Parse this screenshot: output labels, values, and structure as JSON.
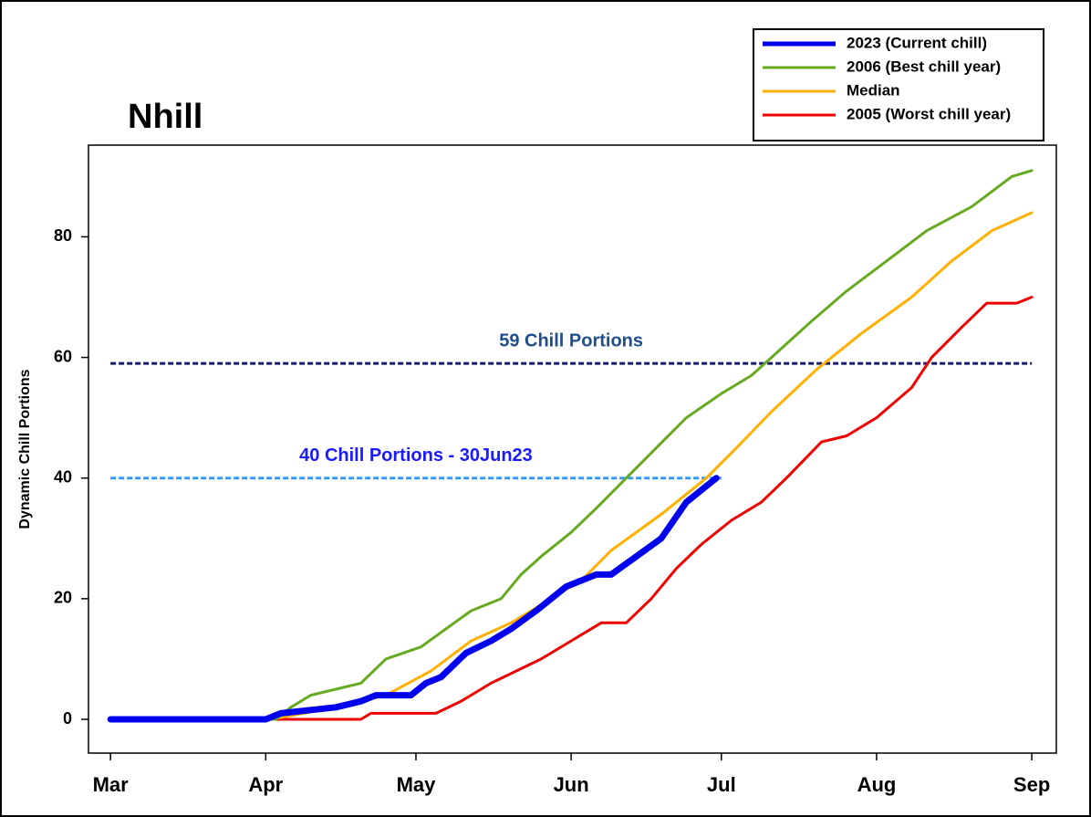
{
  "chart_data": {
    "type": "line",
    "title": "Nhill",
    "y_label": "Dynamic Chill Portions",
    "xlim": [
      -4.4,
      188.9
    ],
    "ylim": [
      -5.6,
      95.2
    ],
    "xticks": [
      {
        "value": 0,
        "label": "Mar"
      },
      {
        "value": 31,
        "label": "Apr"
      },
      {
        "value": 61,
        "label": "May"
      },
      {
        "value": 92,
        "label": "Jun"
      },
      {
        "value": 122,
        "label": "Jul"
      },
      {
        "value": 153,
        "label": "Aug"
      },
      {
        "value": 184,
        "label": "Sep"
      }
    ],
    "yticks": [
      0,
      20,
      40,
      60,
      80
    ],
    "grid": false,
    "legend": "top-right",
    "reference_lines": [
      {
        "value": 59,
        "label": "59 Chill Portions",
        "color": "#1a1a6e",
        "label_color": "#1f4e8c",
        "x_range": [
          0,
          184
        ]
      },
      {
        "value": 40,
        "label": "40 Chill Portions - 30Jun23",
        "color": "#3399ff",
        "label_color": "#1a1aff",
        "x_range": [
          0,
          122
        ]
      }
    ],
    "series": [
      {
        "name": "2005 (Worst chill year)",
        "color": "#ee0000",
        "width": 3,
        "x": [
          0,
          31,
          50,
          52,
          65,
          70,
          76,
          81,
          86,
          92,
          98,
          103,
          108,
          113,
          118,
          124,
          130,
          135,
          142,
          147,
          153,
          160,
          164,
          170,
          175,
          181,
          184
        ],
        "values": [
          0,
          0,
          0,
          1,
          1,
          3,
          6,
          8,
          10,
          13,
          16,
          16,
          20,
          25,
          29,
          33,
          36,
          40,
          46,
          47,
          50,
          55,
          60,
          65,
          69,
          69,
          70
        ]
      },
      {
        "name": "Median",
        "color": "#ffb000",
        "width": 3,
        "x": [
          0,
          32,
          45,
          55,
          64,
          72,
          80,
          86,
          94,
          100,
          110,
          119,
          125,
          132,
          141,
          150,
          160,
          168,
          176,
          184
        ],
        "values": [
          0,
          0,
          2,
          4,
          8,
          13,
          16,
          19,
          23,
          28,
          34,
          40,
          45,
          51,
          58,
          64,
          70,
          76,
          81,
          84
        ]
      },
      {
        "name": "2006 (Best chill year)",
        "color": "#66aa22",
        "width": 3,
        "x": [
          0,
          33,
          36,
          40,
          50,
          55,
          62,
          67,
          72,
          78,
          82,
          86,
          92,
          97,
          103,
          109,
          115,
          122,
          128,
          132,
          140,
          147,
          155,
          163,
          172,
          180,
          184
        ],
        "values": [
          0,
          0,
          2,
          4,
          6,
          10,
          12,
          15,
          18,
          20,
          24,
          27,
          31,
          35,
          40,
          45,
          50,
          54,
          57,
          60,
          66,
          71,
          76,
          81,
          85,
          90,
          91
        ]
      },
      {
        "name": "2023 (Current chill)",
        "color": "#0000ee",
        "width": 7,
        "x": [
          0,
          31,
          34,
          45,
          50,
          53,
          60,
          63,
          66,
          71,
          76,
          80,
          85,
          88,
          91,
          97,
          100,
          105,
          110,
          115,
          121
        ],
        "values": [
          0,
          0,
          1,
          2,
          3,
          4,
          4,
          6,
          7,
          11,
          13,
          15,
          18,
          20,
          22,
          24,
          24,
          27,
          30,
          36,
          40
        ]
      }
    ]
  }
}
